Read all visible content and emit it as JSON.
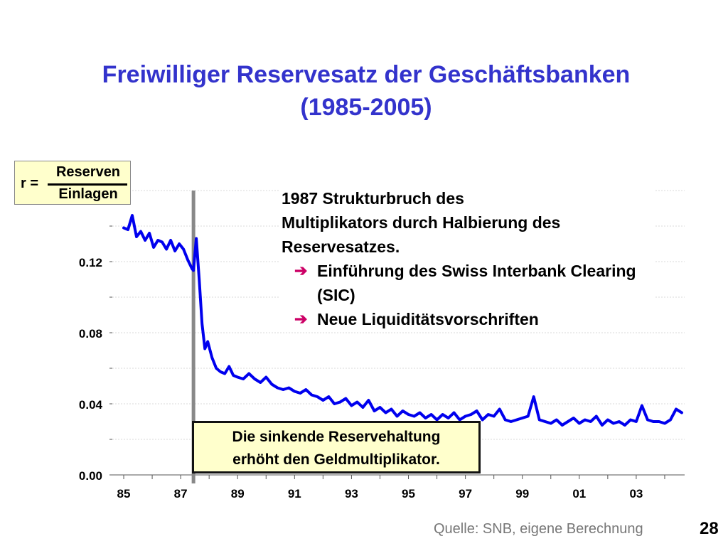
{
  "slide": {
    "title_line1": "Freiwilliger Reservesatz der Geschäftsbanken",
    "title_line2": "(1985-2005)",
    "formula": {
      "lhs": "r =",
      "numerator": "Reserven",
      "denominator": "Einlagen"
    },
    "annotation": {
      "line1": "1987 Strukturbruch des",
      "line2": "Multiplikators durch Halbierung des",
      "line3": "Reservesatzes.",
      "bullets": [
        "Einführung des Swiss Interbank Clearing (SIC)",
        "Neue Liquiditätsvorschriften"
      ],
      "arrow_color": "#cc0066"
    },
    "callout": {
      "line1": "Die sinkende Reservehaltung",
      "line2": "erhöht den Geldmultiplikator."
    },
    "source": "Quelle: SNB, eigene Berechnung",
    "page_number": "28"
  },
  "chart_data": {
    "type": "line",
    "line_color": "#0000ee",
    "break_line_color": "#888888",
    "structural_break_year": 1987.45,
    "xlim": [
      1984.6,
      2004.7
    ],
    "ylim": [
      0,
      0.16
    ],
    "yticks": [
      0.0,
      0.04,
      0.08,
      0.12
    ],
    "ytick_labels": [
      "0.00",
      "0.04",
      "0.08",
      "0.12"
    ],
    "xticks": [
      1985,
      1987,
      1989,
      1991,
      1993,
      1995,
      1997,
      1999,
      2001,
      2003
    ],
    "xtick_labels": [
      "85",
      "87",
      "89",
      "91",
      "93",
      "95",
      "97",
      "99",
      "01",
      "03"
    ],
    "grid": true,
    "series": [
      {
        "x": [
          1985.0,
          1985.15,
          1985.3,
          1985.45,
          1985.6,
          1985.75,
          1985.9,
          1986.05,
          1986.2,
          1986.35,
          1986.5,
          1986.65,
          1986.8,
          1986.95,
          1987.1,
          1987.25,
          1987.4,
          1987.45,
          1987.55,
          1987.65,
          1987.75,
          1987.85,
          1987.95,
          1988.1,
          1988.25,
          1988.4,
          1988.55,
          1988.7,
          1988.85,
          1989.0,
          1989.2,
          1989.4,
          1989.6,
          1989.8,
          1990.0,
          1990.2,
          1990.4,
          1990.6,
          1990.8,
          1991.0,
          1991.2,
          1991.4,
          1991.6,
          1991.8,
          1992.0,
          1992.2,
          1992.4,
          1992.6,
          1992.8,
          1993.0,
          1993.2,
          1993.4,
          1993.6,
          1993.8,
          1994.0,
          1994.2,
          1994.4,
          1994.6,
          1994.8,
          1995.0,
          1995.2,
          1995.4,
          1995.6,
          1995.8,
          1996.0,
          1996.2,
          1996.4,
          1996.6,
          1996.8,
          1997.0,
          1997.2,
          1997.4,
          1997.6,
          1997.8,
          1998.0,
          1998.2,
          1998.4,
          1998.6,
          1998.8,
          1999.0,
          1999.2,
          1999.4,
          1999.6,
          1999.8,
          2000.0,
          2000.2,
          2000.4,
          2000.6,
          2000.8,
          2001.0,
          2001.2,
          2001.4,
          2001.6,
          2001.8,
          2002.0,
          2002.2,
          2002.4,
          2002.6,
          2002.8,
          2003.0,
          2003.2,
          2003.4,
          2003.6,
          2003.8,
          2004.0,
          2004.2,
          2004.4,
          2004.6
        ],
        "y": [
          0.139,
          0.138,
          0.146,
          0.134,
          0.137,
          0.132,
          0.136,
          0.128,
          0.132,
          0.131,
          0.127,
          0.132,
          0.126,
          0.13,
          0.127,
          0.121,
          0.116,
          0.115,
          0.133,
          0.11,
          0.085,
          0.071,
          0.075,
          0.066,
          0.06,
          0.058,
          0.057,
          0.061,
          0.056,
          0.055,
          0.054,
          0.057,
          0.054,
          0.052,
          0.055,
          0.051,
          0.049,
          0.048,
          0.049,
          0.047,
          0.046,
          0.048,
          0.045,
          0.044,
          0.042,
          0.044,
          0.04,
          0.041,
          0.043,
          0.039,
          0.041,
          0.038,
          0.042,
          0.036,
          0.038,
          0.035,
          0.037,
          0.033,
          0.036,
          0.034,
          0.033,
          0.035,
          0.032,
          0.034,
          0.031,
          0.034,
          0.032,
          0.035,
          0.031,
          0.033,
          0.034,
          0.036,
          0.031,
          0.034,
          0.033,
          0.037,
          0.031,
          0.03,
          0.031,
          0.032,
          0.033,
          0.044,
          0.031,
          0.03,
          0.029,
          0.031,
          0.028,
          0.03,
          0.032,
          0.029,
          0.031,
          0.03,
          0.033,
          0.028,
          0.031,
          0.029,
          0.03,
          0.028,
          0.031,
          0.03,
          0.039,
          0.031,
          0.03,
          0.03,
          0.029,
          0.031,
          0.037,
          0.035
        ]
      }
    ]
  }
}
